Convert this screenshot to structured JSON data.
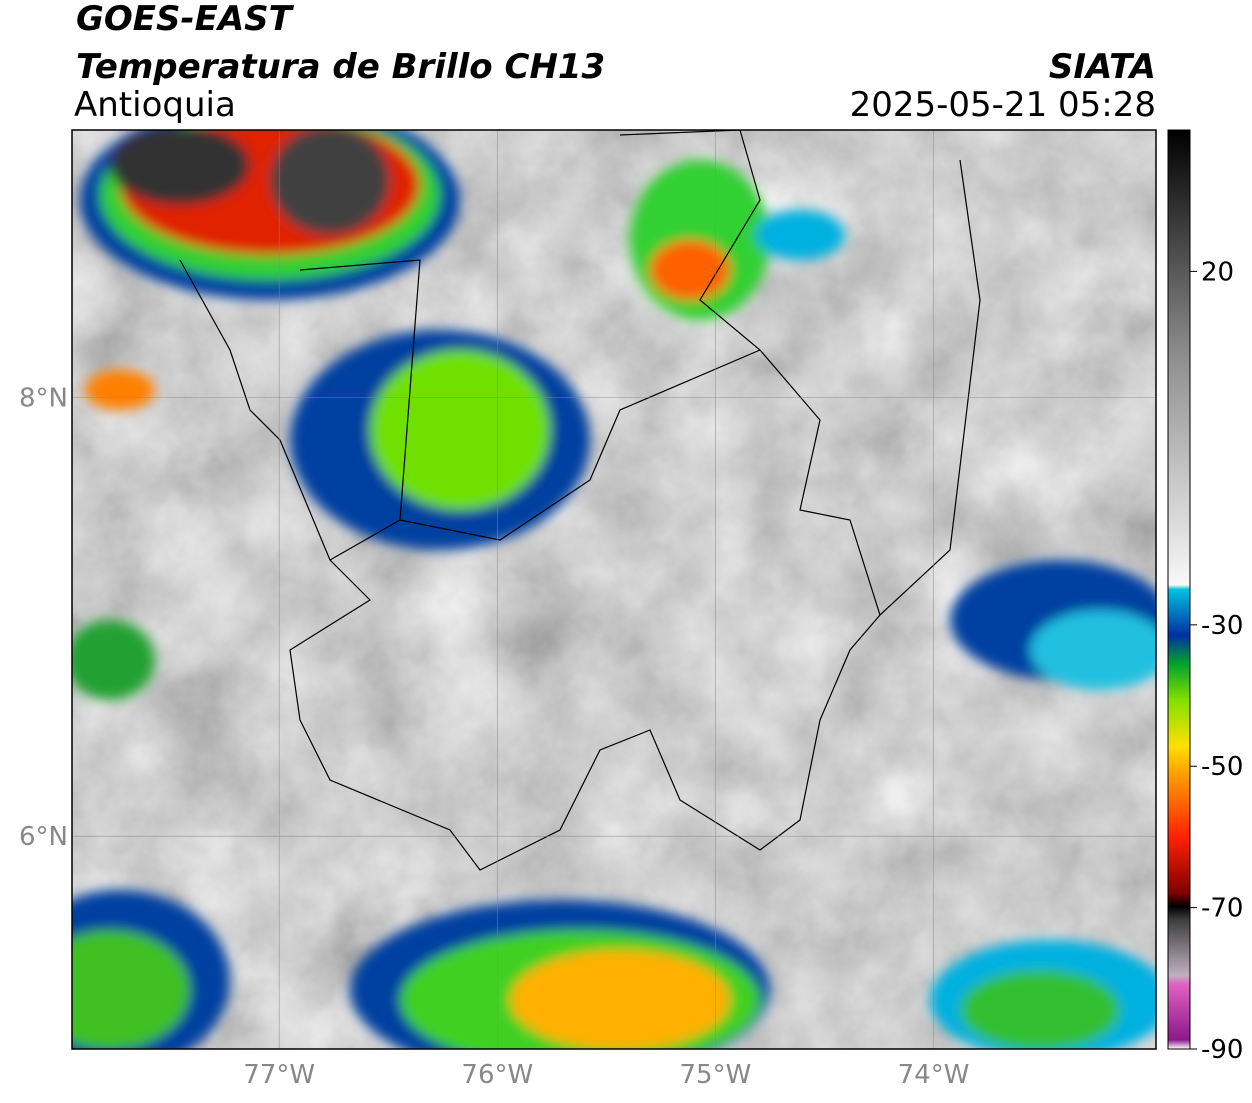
{
  "header": {
    "satellite": "GOES-EAST",
    "product": "Temperatura de Brillo CH13",
    "region": "Antioquia",
    "agency": "SIATA",
    "datetime": "2025-05-21 05:28"
  },
  "map": {
    "lonlim": [
      -77.95,
      -72.98
    ],
    "latlim": [
      5.03,
      9.22
    ],
    "lonticks": [
      {
        "value": -77,
        "label": "77°W"
      },
      {
        "value": -76,
        "label": "76°W"
      },
      {
        "value": -75,
        "label": "75°W"
      },
      {
        "value": -74,
        "label": "74°W"
      }
    ],
    "latticks": [
      {
        "value": 8,
        "label": "8°N"
      },
      {
        "value": 6,
        "label": "6°N"
      }
    ]
  },
  "colorbar": {
    "range": [
      -90,
      40
    ],
    "ticks": [
      20,
      -30,
      -50,
      -70,
      -90
    ]
  }
}
